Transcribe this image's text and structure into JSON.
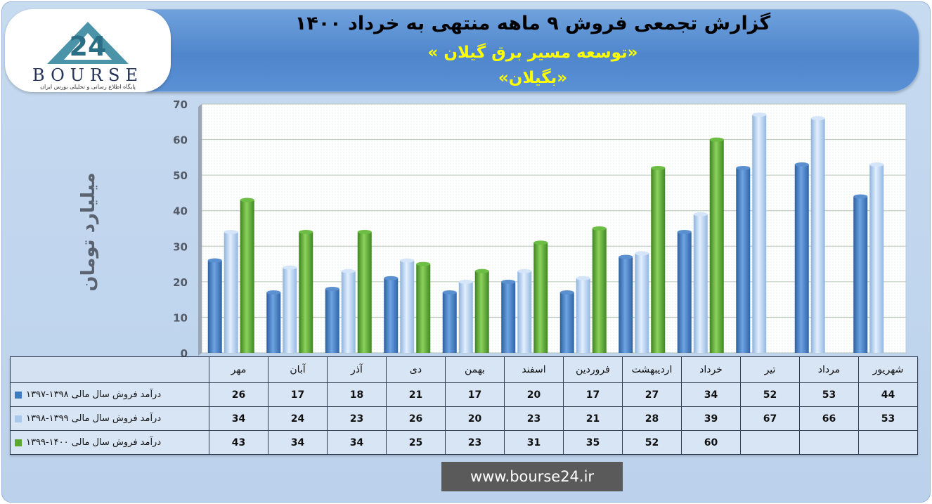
{
  "header": {
    "title": "گزارش تجمعی فروش ۹ ماهه منتهی به خرداد ۱۴۰۰",
    "company": "«توسعه مسیر برق گیلان »",
    "symbol": "«بگیلان»"
  },
  "logo": {
    "mark": "24",
    "name": "BOURSE",
    "tagline": "پایگاه اطلاع رسانی و تحلیلی بورس ایران"
  },
  "footer": {
    "url": "www.bourse24.ir"
  },
  "colors": {
    "series1": "#3f7ac4",
    "series2": "#a9c8ec",
    "series3": "#5aa830"
  },
  "chart_data": {
    "type": "bar",
    "title": "گزارش تجمعی فروش ۹ ماهه منتهی به خرداد ۱۴۰۰",
    "ylabel": "میلیارد تومان",
    "ylim": [
      0,
      70
    ],
    "yticks": [
      0,
      10,
      20,
      30,
      40,
      50,
      60,
      70
    ],
    "grid": true,
    "legend": "table-left",
    "categories": [
      "مهر",
      "آبان",
      "آذر",
      "دی",
      "بهمن",
      "اسفند",
      "فروردین",
      "اردیبهشت",
      "خرداد",
      "تیر",
      "مرداد",
      "شهریور"
    ],
    "series": [
      {
        "name": "درآمد فروش سال مالی ۱۳۹۸-۱۳۹۷",
        "color": "#3f7ac4",
        "values": [
          26,
          17,
          18,
          21,
          17,
          20,
          17,
          27,
          34,
          52,
          53,
          44
        ]
      },
      {
        "name": "درآمد فروش سال مالی ۱۳۹۹-۱۳۹۸",
        "color": "#a9c8ec",
        "values": [
          34,
          24,
          23,
          26,
          20,
          23,
          21,
          28,
          39,
          67,
          66,
          53
        ]
      },
      {
        "name": "درآمد فروش سال مالی ۱۴۰۰-۱۳۹۹",
        "color": "#5aa830",
        "values": [
          43,
          34,
          34,
          25,
          23,
          31,
          35,
          52,
          60,
          null,
          null,
          null
        ]
      }
    ]
  }
}
